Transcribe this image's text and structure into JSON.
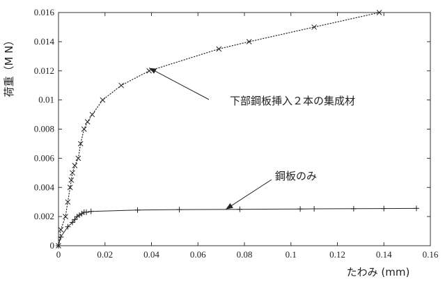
{
  "chart_data": {
    "type": "line",
    "xlabel": "たわみ (mm)",
    "ylabel": "荷重（M N）",
    "xlim": [
      0,
      0.16
    ],
    "ylim": [
      0,
      0.016
    ],
    "x_ticks": [
      "0",
      "0.02",
      "0.04",
      "0.06",
      "0.08",
      "0.1",
      "0.12",
      "0.14",
      "0.16"
    ],
    "y_ticks": [
      "0",
      "0.002",
      "0.004",
      "0.006",
      "0.008",
      "0.01",
      "0.012",
      "0.014",
      "0.016"
    ],
    "grid": false,
    "series": [
      {
        "name": "下部鋼板挿入２本の集成材",
        "marker": "x",
        "linestyle": "dotted",
        "x": [
          0,
          0.001,
          0.003,
          0.004,
          0.005,
          0.0055,
          0.006,
          0.007,
          0.0085,
          0.0095,
          0.011,
          0.0125,
          0.0145,
          0.019,
          0.027,
          0.039,
          0.069,
          0.082,
          0.11,
          0.138
        ],
        "y": [
          0,
          0.0011,
          0.002,
          0.003,
          0.004,
          0.0045,
          0.005,
          0.0055,
          0.006,
          0.007,
          0.008,
          0.0085,
          0.009,
          0.01,
          0.011,
          0.012,
          0.0135,
          0.014,
          0.015,
          0.016
        ]
      },
      {
        "name": "鋼板のみ",
        "marker": "+",
        "linestyle": "solid",
        "x": [
          0,
          0.001,
          0.004,
          0.006,
          0.007,
          0.008,
          0.009,
          0.01,
          0.011,
          0.012,
          0.014,
          0.034,
          0.052,
          0.078,
          0.104,
          0.11,
          0.127,
          0.14,
          0.154
        ],
        "y": [
          0,
          0.0006,
          0.0013,
          0.0016,
          0.0018,
          0.002,
          0.0021,
          0.0022,
          0.0023,
          0.0023,
          0.00235,
          0.00245,
          0.00248,
          0.0025,
          0.00252,
          0.00253,
          0.00254,
          0.00255,
          0.00256
        ]
      }
    ],
    "annotations": [
      {
        "text": "下部鋼板挿入２本の集成材",
        "points_to_x": 0.039,
        "points_to_y": 0.0122
      },
      {
        "text": "鋼板のみ",
        "points_to_x": 0.072,
        "points_to_y": 0.0025
      }
    ]
  }
}
